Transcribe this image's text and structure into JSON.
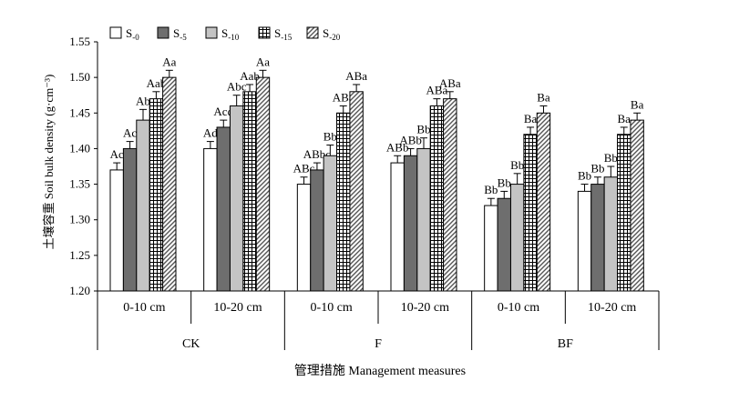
{
  "chart_data": {
    "type": "bar",
    "ylabel": "土壤容重 Soil bulk density (g·cm⁻³)",
    "xlabel": "管理措施 Management measures",
    "ylim": [
      1.2,
      1.55
    ],
    "yticks": [
      "1.20",
      "1.25",
      "1.30",
      "1.35",
      "1.40",
      "1.45",
      "1.50",
      "1.55"
    ],
    "grid": false,
    "legend_position": "top-left",
    "groups": [
      "CK",
      "F",
      "BF"
    ],
    "depths": [
      "0-10 cm",
      "10-20 cm"
    ],
    "categories": [
      "CK 0-10 cm",
      "CK 10-20 cm",
      "F 0-10 cm",
      "F 10-20 cm",
      "BF 0-10 cm",
      "BF 10-20 cm"
    ],
    "series": [
      {
        "name": "S-0",
        "base": "S",
        "sub": "-0",
        "pattern": "white",
        "values": [
          1.37,
          1.4,
          1.35,
          1.38,
          1.32,
          1.34
        ],
        "errors": [
          0.01,
          0.01,
          0.01,
          0.01,
          0.01,
          0.01
        ],
        "labels": [
          "Ac",
          "Ad",
          "ABc",
          "ABb",
          "Bb",
          "Bb"
        ]
      },
      {
        "name": "S-5",
        "base": "S",
        "sub": "-5",
        "pattern": "darkgray",
        "values": [
          1.4,
          1.43,
          1.37,
          1.39,
          1.33,
          1.35
        ],
        "errors": [
          0.01,
          0.01,
          0.01,
          0.01,
          0.01,
          0.01
        ],
        "labels": [
          "Ac",
          "Acd",
          "ABbc",
          "ABb",
          "Bb",
          "Bb"
        ]
      },
      {
        "name": "S-10",
        "base": "S",
        "sub": "-10",
        "pattern": "lightgray",
        "values": [
          1.44,
          1.46,
          1.39,
          1.4,
          1.35,
          1.36
        ],
        "errors": [
          0.015,
          0.015,
          0.015,
          0.015,
          0.015,
          0.015
        ],
        "labels": [
          "Ab",
          "Abc",
          "Bb",
          "Bb",
          "Bb",
          "Bb"
        ]
      },
      {
        "name": "S-15",
        "base": "S",
        "sub": "-15",
        "pattern": "grid",
        "values": [
          1.47,
          1.48,
          1.45,
          1.46,
          1.42,
          1.42
        ],
        "errors": [
          0.01,
          0.01,
          0.01,
          0.01,
          0.01,
          0.01
        ],
        "labels": [
          "Aab",
          "Aab",
          "ABa",
          "ABa",
          "Ba",
          "Ba"
        ]
      },
      {
        "name": "S-20",
        "base": "S",
        "sub": "-20",
        "pattern": "hatch",
        "values": [
          1.5,
          1.5,
          1.48,
          1.47,
          1.45,
          1.44
        ],
        "errors": [
          0.01,
          0.01,
          0.01,
          0.01,
          0.01,
          0.01
        ],
        "labels": [
          "Aa",
          "Aa",
          "ABa",
          "ABa",
          "Ba",
          "Ba"
        ]
      }
    ]
  }
}
